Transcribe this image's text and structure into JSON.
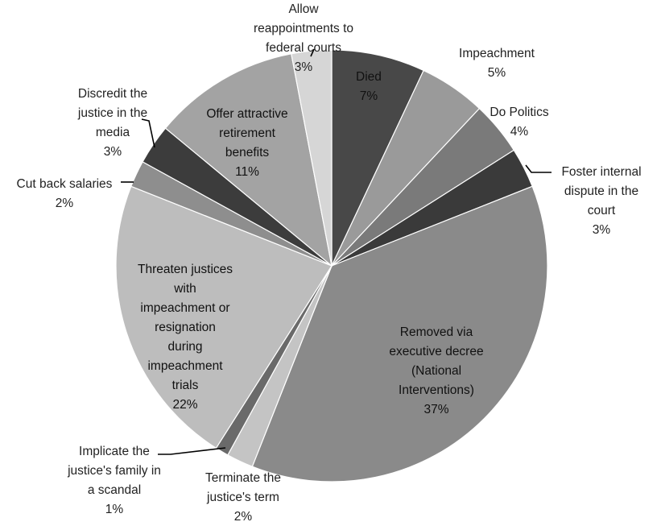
{
  "chart_data": {
    "type": "pie",
    "title": "",
    "start_angle_deg": 0,
    "direction": "clockwise",
    "legend": "none",
    "slices": [
      {
        "label": "Died",
        "pct_label": "7%",
        "value": 7,
        "color": "#484848"
      },
      {
        "label": "Impeachment",
        "pct_label": "5%",
        "value": 5,
        "color": "#9a9a9a"
      },
      {
        "label": "Do Politics",
        "pct_label": "4%",
        "value": 4,
        "color": "#7a7a7a"
      },
      {
        "label": "Foster internal dispute in the court",
        "pct_label": "3%",
        "value": 3,
        "color": "#3a3a3a"
      },
      {
        "label": "Removed via executive decree (National Interventions)",
        "pct_label": "37%",
        "value": 37,
        "color": "#8a8a8a"
      },
      {
        "label": "Terminate the justice's term",
        "pct_label": "2%",
        "value": 2,
        "color": "#c4c4c4"
      },
      {
        "label": "Implicate the justice's family in a scandal",
        "pct_label": "1%",
        "value": 1,
        "color": "#6a6a6a"
      },
      {
        "label": "Threaten justices with impeachment or resignation during impeachment trials",
        "pct_label": "22%",
        "value": 22,
        "color": "#bdbdbd"
      },
      {
        "label": "Cut back salaries",
        "pct_label": "2%",
        "value": 2,
        "color": "#8e8e8e"
      },
      {
        "label": "Discredit the justice in the media",
        "pct_label": "3%",
        "value": 3,
        "color": "#3c3c3c"
      },
      {
        "label": "Offer attractive retirement benefits",
        "pct_label": "11%",
        "value": 11,
        "color": "#a3a3a3"
      },
      {
        "label": "Allow reappointments to federal courts",
        "pct_label": "3%",
        "value": 3,
        "color": "#d6d6d6"
      }
    ]
  }
}
